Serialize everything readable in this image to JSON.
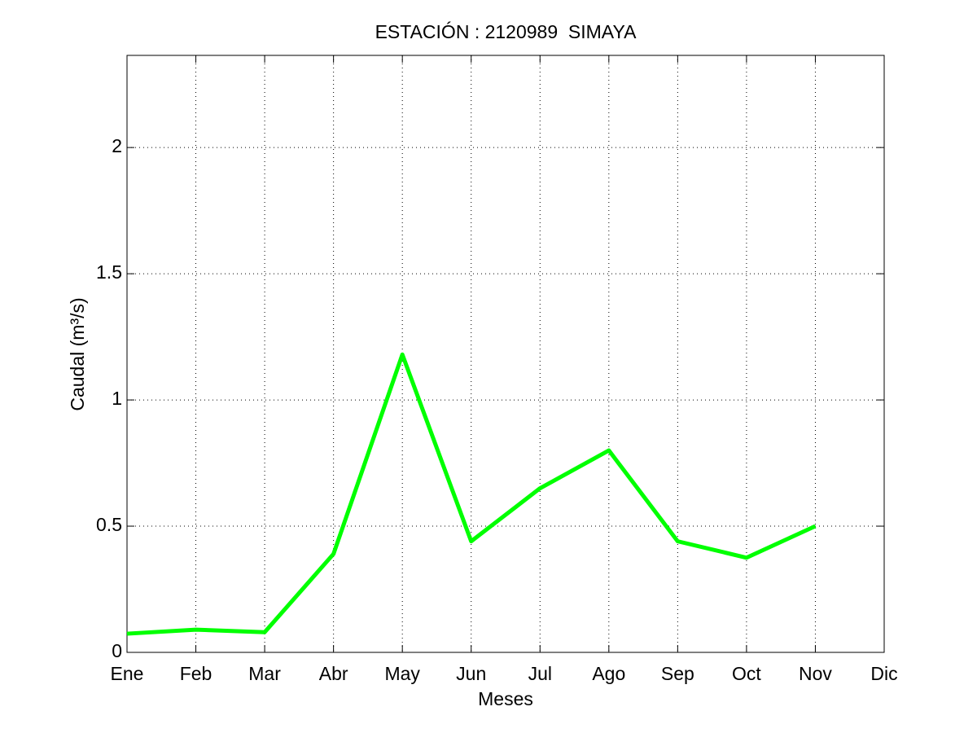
{
  "chart_data": {
    "type": "line",
    "title": "ESTACIÓN : 2120989  SIMAYA",
    "x_label": "Meses",
    "y_label": "Caudal (m³/s)",
    "categories": [
      "Ene",
      "Feb",
      "Mar",
      "Abr",
      "May",
      "Jun",
      "Jul",
      "Ago",
      "Sep",
      "Oct",
      "Nov",
      "Dic"
    ],
    "values": [
      0.074,
      0.09,
      0.08,
      0.39,
      1.18,
      0.44,
      0.65,
      0.8,
      0.44,
      0.375,
      0.5,
      null
    ],
    "color": "#00ff00",
    "ylim": [
      0,
      2.365
    ],
    "yticks": [
      0,
      0.5,
      1,
      1.5,
      2
    ],
    "grid": true
  }
}
